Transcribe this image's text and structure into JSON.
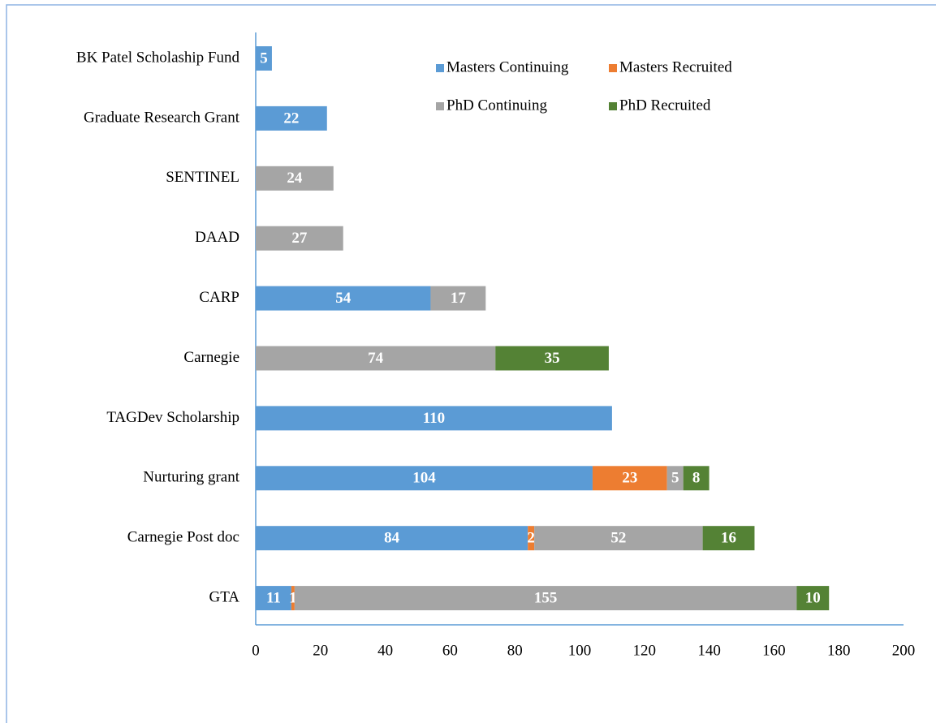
{
  "chart_data": {
    "type": "stacked-bar-horizontal",
    "categories": [
      "BK Patel Scholaship Fund",
      "Graduate Research Grant",
      "SENTINEL",
      "DAAD",
      "CARP",
      "Carnegie",
      "TAGDev Scholarship",
      "Nurturing grant",
      "Carnegie Post doc",
      "GTA"
    ],
    "series": [
      {
        "name": "Masters Continuing",
        "color": "#5b9bd5",
        "values": [
          5,
          22,
          null,
          null,
          54,
          null,
          110,
          104,
          84,
          11
        ]
      },
      {
        "name": "Masters Recruited",
        "color": "#ed7d31",
        "values": [
          null,
          null,
          null,
          null,
          null,
          null,
          null,
          23,
          2,
          1
        ]
      },
      {
        "name": "PhD Continuing",
        "color": "#a5a5a5",
        "values": [
          null,
          null,
          24,
          27,
          17,
          74,
          null,
          5,
          52,
          155
        ]
      },
      {
        "name": "PhD Recruited",
        "color": "#548235",
        "values": [
          null,
          null,
          null,
          null,
          null,
          35,
          null,
          8,
          16,
          10
        ]
      }
    ],
    "xlim": [
      0,
      200
    ],
    "xticks": [
      0,
      20,
      40,
      60,
      80,
      100,
      120,
      140,
      160,
      180,
      200
    ],
    "grid": false,
    "legend": "top-right"
  }
}
